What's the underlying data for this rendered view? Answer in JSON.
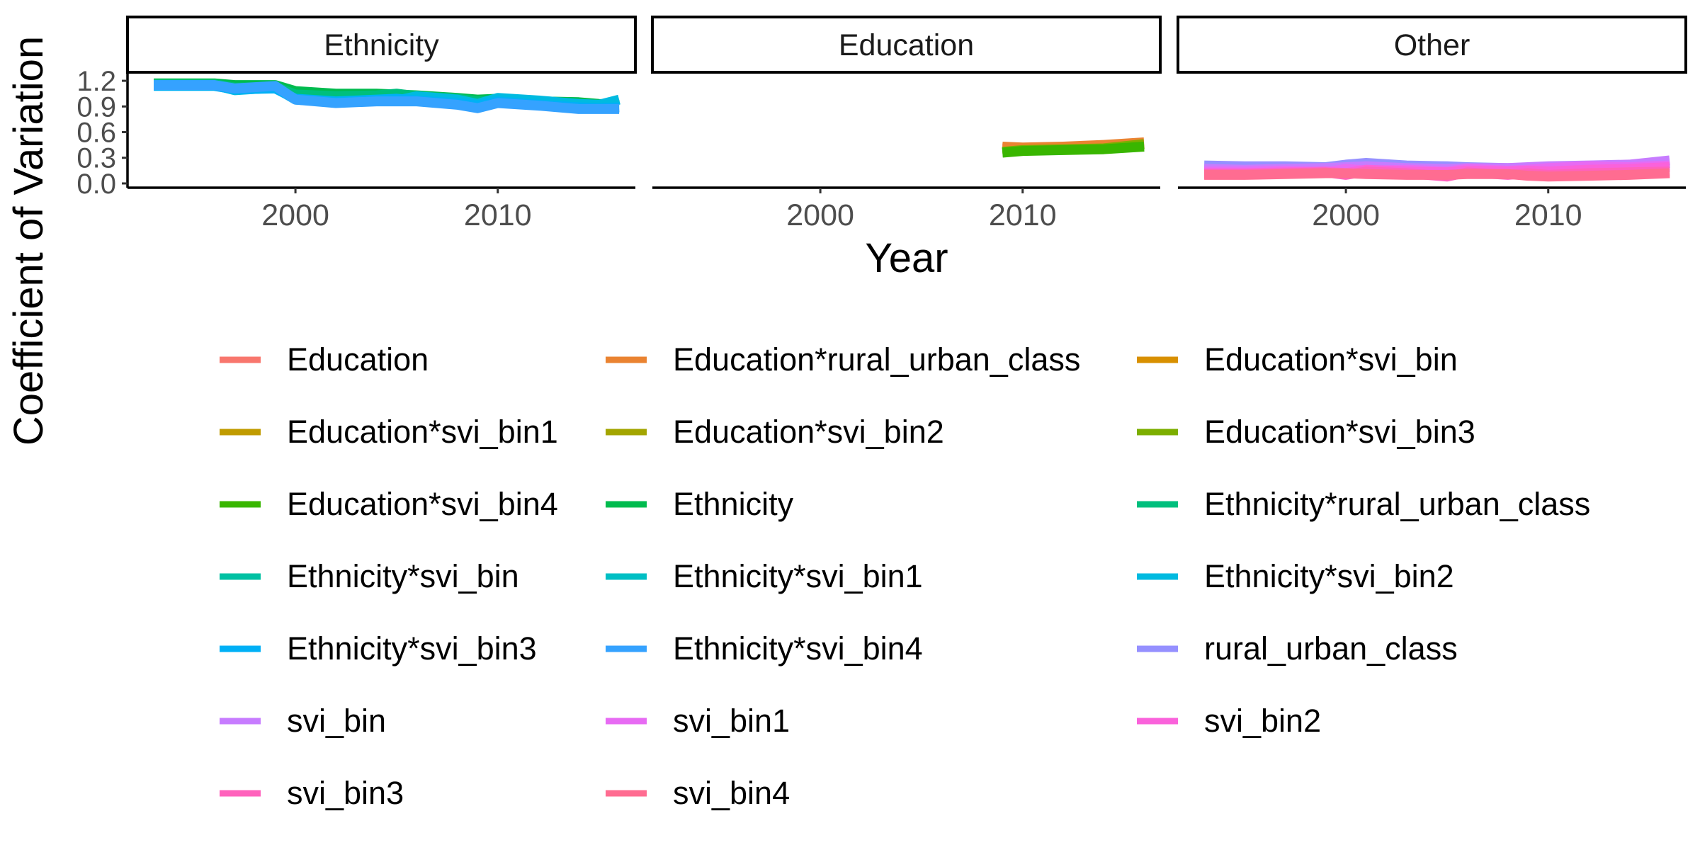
{
  "chart_data": {
    "type": "line",
    "ylabel": "Coefficient of Variation",
    "xlabel": "Year",
    "xlim": [
      1991.7,
      2016.8
    ],
    "ylim": [
      -0.05,
      1.3
    ],
    "x_ticks": [
      2000,
      2010
    ],
    "y_ticks": [
      0.0,
      0.3,
      0.6,
      0.9,
      1.2
    ],
    "y_tick_labels": [
      "0.0",
      "0.3",
      "0.6",
      "0.9",
      "1.2"
    ],
    "x_tick_labels": [
      "2000",
      "2010"
    ],
    "legend_position": "bottom",
    "panels": [
      {
        "title": "Ethnicity",
        "series": [
          {
            "name": "Ethnicity",
            "x": [
              1993,
              1995,
              1996,
              1997,
              1999,
              2000,
              2002,
              2004,
              2005,
              2006,
              2008,
              2009,
              2010,
              2012,
              2014,
              2015,
              2016
            ],
            "values": [
              1.17,
              1.17,
              1.17,
              1.15,
              1.15,
              1.08,
              1.05,
              1.05,
              1.04,
              1.03,
              1.0,
              0.98,
              0.99,
              0.96,
              0.95,
              0.93,
              0.92
            ]
          },
          {
            "name": "Ethnicity*rural_urban_class",
            "x": [
              1993,
              1995,
              1996,
              1997,
              1999,
              2000,
              2002,
              2004,
              2005,
              2006,
              2008,
              2009,
              2010,
              2012,
              2014,
              2015,
              2016
            ],
            "values": [
              1.16,
              1.16,
              1.16,
              1.12,
              1.13,
              1.04,
              1.02,
              1.03,
              1.05,
              1.02,
              0.99,
              0.96,
              0.97,
              0.95,
              0.93,
              0.92,
              0.91
            ]
          },
          {
            "name": "Ethnicity*svi_bin2",
            "x": [
              1993,
              1995,
              1996,
              1997,
              1999,
              2000,
              2002,
              2004,
              2005,
              2006,
              2008,
              2009,
              2010,
              2012,
              2014,
              2015,
              2016
            ],
            "values": [
              1.15,
              1.15,
              1.15,
              1.09,
              1.12,
              0.98,
              0.95,
              0.97,
              0.97,
              1.02,
              0.98,
              0.93,
              1.0,
              0.97,
              0.93,
              0.92,
              0.98
            ]
          },
          {
            "name": "Ethnicity*svi_bin3",
            "x": [
              1993,
              1995,
              1996,
              1997,
              1999,
              2000,
              2002,
              2004,
              2005,
              2006,
              2008,
              2009,
              2010,
              2012,
              2014,
              2015,
              2016
            ],
            "values": [
              1.14,
              1.14,
              1.14,
              1.1,
              1.11,
              0.99,
              0.96,
              0.98,
              0.99,
              0.97,
              0.94,
              0.91,
              0.96,
              0.92,
              0.89,
              0.88,
              0.89
            ]
          },
          {
            "name": "Ethnicity*svi_bin4",
            "x": [
              1993,
              1995,
              1996,
              1997,
              1999,
              2000,
              2002,
              2004,
              2005,
              2006,
              2008,
              2009,
              2010,
              2012,
              2014,
              2015,
              2016
            ],
            "values": [
              1.15,
              1.15,
              1.15,
              1.11,
              1.14,
              0.98,
              0.94,
              0.96,
              0.96,
              0.96,
              0.92,
              0.88,
              0.94,
              0.91,
              0.87,
              0.87,
              0.87
            ]
          }
        ]
      },
      {
        "title": "Education",
        "series": [
          {
            "name": "Education",
            "x": [
              2009,
              2010,
              2012,
              2014,
              2016
            ],
            "values": [
              0.41,
              0.41,
              0.42,
              0.43,
              0.45
            ]
          },
          {
            "name": "Education*rural_urban_class",
            "x": [
              2009,
              2010,
              2012,
              2014,
              2016
            ],
            "values": [
              0.43,
              0.42,
              0.43,
              0.45,
              0.48
            ]
          },
          {
            "name": "Education*svi_bin3",
            "x": [
              2009,
              2010,
              2012,
              2014,
              2016
            ],
            "values": [
              0.37,
              0.39,
              0.4,
              0.41,
              0.46
            ]
          },
          {
            "name": "Education*svi_bin4",
            "x": [
              2009,
              2010,
              2012,
              2014,
              2016
            ],
            "values": [
              0.36,
              0.38,
              0.39,
              0.4,
              0.43
            ]
          }
        ]
      },
      {
        "title": "Other",
        "series": [
          {
            "name": "rural_urban_class",
            "x": [
              1993,
              1995,
              1997,
              1999,
              2000,
              2001,
              2003,
              2005,
              2006,
              2008,
              2009,
              2010,
              2012,
              2014,
              2016
            ],
            "values": [
              0.21,
              0.2,
              0.2,
              0.19,
              0.22,
              0.24,
              0.21,
              0.2,
              0.19,
              0.18,
              0.18,
              0.17,
              0.18,
              0.2,
              0.24
            ]
          },
          {
            "name": "svi_bin",
            "x": [
              1993,
              1995,
              1997,
              1999,
              2000,
              2001,
              2003,
              2005,
              2006,
              2008,
              2009,
              2010,
              2012,
              2014,
              2016
            ],
            "values": [
              0.17,
              0.16,
              0.17,
              0.18,
              0.19,
              0.2,
              0.18,
              0.17,
              0.18,
              0.18,
              0.19,
              0.2,
              0.21,
              0.22,
              0.27
            ]
          },
          {
            "name": "svi_bin1",
            "x": [
              1993,
              1995,
              1997,
              1999,
              2000,
              2001,
              2003,
              2005,
              2006,
              2008,
              2009,
              2010,
              2012,
              2014,
              2016
            ],
            "values": [
              0.14,
              0.14,
              0.15,
              0.13,
              0.17,
              0.15,
              0.16,
              0.14,
              0.17,
              0.15,
              0.16,
              0.18,
              0.2,
              0.19,
              0.21
            ]
          },
          {
            "name": "svi_bin2",
            "x": [
              1993,
              1995,
              1997,
              1999,
              2000,
              2001,
              2003,
              2005,
              2006,
              2008,
              2009,
              2010,
              2012,
              2014,
              2016
            ],
            "values": [
              0.12,
              0.12,
              0.13,
              0.14,
              0.12,
              0.16,
              0.14,
              0.13,
              0.15,
              0.14,
              0.15,
              0.14,
              0.16,
              0.17,
              0.19
            ]
          },
          {
            "name": "svi_bin3",
            "x": [
              1993,
              1995,
              1997,
              1999,
              2000,
              2001,
              2003,
              2005,
              2006,
              2008,
              2009,
              2010,
              2012,
              2014,
              2016
            ],
            "values": [
              0.11,
              0.11,
              0.12,
              0.13,
              0.1,
              0.14,
              0.12,
              0.08,
              0.13,
              0.1,
              0.12,
              0.1,
              0.12,
              0.13,
              0.14
            ]
          },
          {
            "name": "svi_bin4",
            "x": [
              1993,
              1995,
              1997,
              1999,
              2000,
              2001,
              2003,
              2005,
              2006,
              2008,
              2009,
              2010,
              2012,
              2014,
              2016
            ],
            "values": [
              0.1,
              0.1,
              0.11,
              0.12,
              0.12,
              0.11,
              0.1,
              0.1,
              0.11,
              0.11,
              0.09,
              0.08,
              0.09,
              0.1,
              0.12
            ]
          }
        ]
      }
    ],
    "legend": [
      {
        "name": "Education",
        "color": "#F8766D"
      },
      {
        "name": "Education*rural_urban_class",
        "color": "#EA8331"
      },
      {
        "name": "Education*svi_bin",
        "color": "#D89000"
      },
      {
        "name": "Education*svi_bin1",
        "color": "#C09B00"
      },
      {
        "name": "Education*svi_bin2",
        "color": "#A3A500"
      },
      {
        "name": "Education*svi_bin3",
        "color": "#7CAE00"
      },
      {
        "name": "Education*svi_bin4",
        "color": "#39B600"
      },
      {
        "name": "Ethnicity",
        "color": "#00BB4E"
      },
      {
        "name": "Ethnicity*rural_urban_class",
        "color": "#00BF7D"
      },
      {
        "name": "Ethnicity*svi_bin",
        "color": "#00C1A3"
      },
      {
        "name": "Ethnicity*svi_bin1",
        "color": "#00BFC4"
      },
      {
        "name": "Ethnicity*svi_bin2",
        "color": "#00BAE0"
      },
      {
        "name": "Ethnicity*svi_bin3",
        "color": "#00B0F6"
      },
      {
        "name": "Ethnicity*svi_bin4",
        "color": "#35A2FF"
      },
      {
        "name": "rural_urban_class",
        "color": "#9590FF"
      },
      {
        "name": "svi_bin",
        "color": "#C77CFF"
      },
      {
        "name": "svi_bin1",
        "color": "#E76BF3"
      },
      {
        "name": "svi_bin2",
        "color": "#FA62DB"
      },
      {
        "name": "svi_bin3",
        "color": "#FF62BC"
      },
      {
        "name": "svi_bin4",
        "color": "#FF6C91"
      }
    ]
  }
}
